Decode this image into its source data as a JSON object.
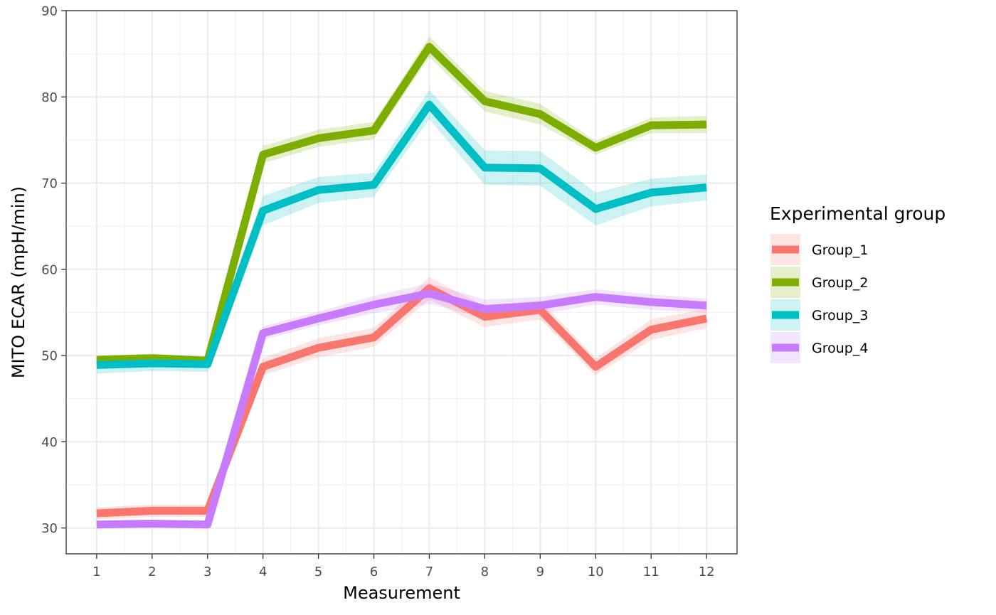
{
  "chart_data": {
    "type": "line",
    "title": "",
    "xlabel": "Measurement",
    "ylabel": "MITO ECAR (mpH/min)",
    "x": [
      1,
      2,
      3,
      4,
      5,
      6,
      7,
      8,
      9,
      10,
      11,
      12
    ],
    "x_ticks": [
      "1",
      "2",
      "3",
      "4",
      "5",
      "6",
      "7",
      "8",
      "9",
      "10",
      "11",
      "12"
    ],
    "xlim": [
      0.45,
      12.55
    ],
    "ylim": [
      27,
      90
    ],
    "y_ticks": [
      30,
      40,
      50,
      60,
      70,
      80,
      90
    ],
    "y_tick_labels": [
      "30",
      "40",
      "50",
      "60",
      "70",
      "80",
      "90"
    ],
    "grid": true,
    "legend": {
      "title": "Experimental group",
      "placement": "right"
    },
    "series": [
      {
        "name": "Group_1",
        "color": "#F8766D",
        "values": [
          31.7,
          32.0,
          32.0,
          48.7,
          50.9,
          52.1,
          57.8,
          54.5,
          55.3,
          48.7,
          53.0,
          54.3
        ],
        "lower": [
          31.0,
          31.3,
          31.3,
          47.7,
          49.8,
          51.0,
          56.5,
          53.3,
          54.2,
          47.7,
          51.8,
          53.2
        ],
        "upper": [
          32.4,
          32.7,
          32.7,
          49.7,
          52.0,
          53.2,
          59.1,
          55.7,
          56.4,
          49.7,
          54.2,
          55.4
        ]
      },
      {
        "name": "Group_2",
        "color": "#7CAE00",
        "values": [
          49.5,
          49.7,
          49.4,
          73.3,
          75.2,
          76.1,
          85.8,
          79.5,
          78.0,
          74.1,
          76.7,
          76.8
        ],
        "lower": [
          49.0,
          49.2,
          48.9,
          72.3,
          74.2,
          75.1,
          84.6,
          78.3,
          76.8,
          73.3,
          75.8,
          75.8
        ],
        "upper": [
          50.0,
          50.2,
          49.9,
          74.3,
          76.2,
          77.1,
          87.0,
          80.7,
          79.2,
          74.9,
          77.6,
          77.8
        ]
      },
      {
        "name": "Group_3",
        "color": "#00BFC4",
        "values": [
          48.9,
          49.1,
          49.0,
          66.8,
          69.2,
          69.8,
          79.1,
          71.8,
          71.7,
          67.0,
          68.9,
          69.5
        ],
        "lower": [
          47.9,
          48.2,
          48.1,
          65.1,
          67.7,
          68.4,
          77.4,
          69.8,
          69.7,
          65.1,
          67.3,
          68.0
        ],
        "upper": [
          49.9,
          50.0,
          49.9,
          68.5,
          70.7,
          71.2,
          80.8,
          73.8,
          73.7,
          68.9,
          70.5,
          71.0
        ]
      },
      {
        "name": "Group_4",
        "color": "#C77CFF",
        "values": [
          30.4,
          30.5,
          30.4,
          52.6,
          54.3,
          55.9,
          57.2,
          55.4,
          55.8,
          56.8,
          56.2,
          55.8
        ],
        "lower": [
          30.0,
          30.1,
          30.0,
          51.8,
          53.5,
          54.9,
          56.0,
          54.3,
          54.8,
          55.9,
          55.3,
          55.0
        ],
        "upper": [
          30.8,
          30.9,
          30.8,
          53.4,
          55.1,
          56.9,
          58.4,
          56.5,
          56.8,
          57.7,
          57.1,
          56.6
        ]
      }
    ]
  }
}
